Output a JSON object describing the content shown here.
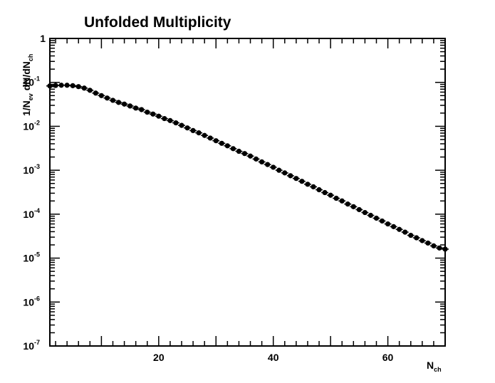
{
  "chart_data": {
    "type": "scatter",
    "title": "Unfolded Multiplicity",
    "xlabel": {
      "main": "N",
      "sub": "ch"
    },
    "ylabel": {
      "p1": "1/N",
      "s1": "ev",
      "p2": " dN/dN",
      "s2": "ch"
    },
    "xlim": [
      1,
      70
    ],
    "ylim": [
      1e-07,
      1
    ],
    "yscale": "log",
    "x_ticks": [
      {
        "value": 20,
        "label": "20"
      },
      {
        "value": 40,
        "label": "40"
      },
      {
        "value": 60,
        "label": "60"
      }
    ],
    "y_ticks": [
      {
        "value": 1,
        "base": "1",
        "exp": ""
      },
      {
        "value": 0.1,
        "base": "10",
        "exp": "-1"
      },
      {
        "value": 0.01,
        "base": "10",
        "exp": "-2"
      },
      {
        "value": 0.001,
        "base": "10",
        "exp": "-3"
      },
      {
        "value": 0.0001,
        "base": "10",
        "exp": "-4"
      },
      {
        "value": 1e-05,
        "base": "10",
        "exp": "-5"
      },
      {
        "value": 1e-06,
        "base": "10",
        "exp": "-6"
      },
      {
        "value": 1e-07,
        "base": "10",
        "exp": "-7"
      }
    ],
    "grid": false,
    "marker_color": "#000000",
    "series": [
      {
        "x": [
          1,
          2,
          3,
          4,
          5,
          6,
          7,
          8,
          9,
          10,
          11,
          12,
          13,
          14,
          15,
          16,
          17,
          18,
          19,
          20,
          21,
          22,
          23,
          24,
          25,
          26,
          27,
          28,
          29,
          30,
          31,
          32,
          33,
          34,
          35,
          36,
          37,
          38,
          39,
          40,
          41,
          42,
          43,
          44,
          45,
          46,
          47,
          48,
          49,
          50,
          51,
          52,
          53,
          54,
          55,
          56,
          57,
          58,
          59,
          60,
          61,
          62,
          63,
          64,
          65,
          66,
          67,
          68,
          69,
          70
        ],
        "y": [
          0.083,
          0.085,
          0.086,
          0.086,
          0.084,
          0.08,
          0.074,
          0.066,
          0.057,
          0.05,
          0.044,
          0.039,
          0.035,
          0.032,
          0.029,
          0.026,
          0.024,
          0.021,
          0.019,
          0.017,
          0.015,
          0.0135,
          0.012,
          0.0105,
          0.0092,
          0.008,
          0.0071,
          0.0062,
          0.0054,
          0.0047,
          0.0041,
          0.0036,
          0.0031,
          0.0027,
          0.0024,
          0.0021,
          0.0018,
          0.00155,
          0.00135,
          0.00117,
          0.001,
          0.00087,
          0.00075,
          0.00065,
          0.00056,
          0.00048,
          0.00042,
          0.00036,
          0.00031,
          0.00027,
          0.00023,
          0.0002,
          0.00017,
          0.000148,
          0.000127,
          0.000109,
          9.4e-05,
          8.1e-05,
          7e-05,
          6e-05,
          5.2e-05,
          4.5e-05,
          3.9e-05,
          3.3e-05,
          2.9e-05,
          2.5e-05,
          2.2e-05,
          1.9e-05,
          1.7e-05,
          1.6e-05
        ]
      }
    ]
  }
}
